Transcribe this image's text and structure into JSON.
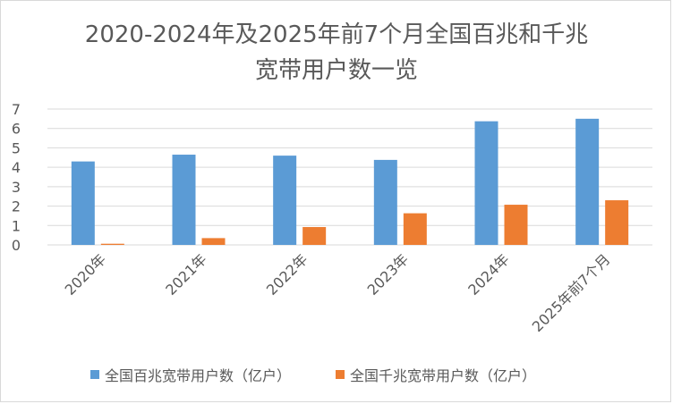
{
  "title": {
    "line1": "2020-2024年及2025年前7个月全国百兆和千兆",
    "line2": "宽带用户数一览"
  },
  "colors": {
    "series1": "#5b9bd5",
    "series2": "#ed7d31",
    "gridline": "#d9d9d9",
    "text": "#595959"
  },
  "chart_data": {
    "type": "bar",
    "title": "2020-2024年及2025年前7个月全国百兆和千兆宽带用户数一览",
    "categories": [
      "2020年",
      "2021年",
      "2022年",
      "2023年",
      "2024年",
      "2025年前7个月"
    ],
    "series": [
      {
        "name": "全国百兆宽带用户数（亿户）",
        "values": [
          4.3,
          4.65,
          4.6,
          4.38,
          6.37,
          6.5
        ]
      },
      {
        "name": "全国千兆宽带用户数（亿户）",
        "values": [
          0.06,
          0.35,
          0.92,
          1.63,
          2.07,
          2.3
        ]
      }
    ],
    "ylim": [
      0,
      7
    ],
    "yticks": [
      0,
      1,
      2,
      3,
      4,
      5,
      6,
      7
    ],
    "grid": true,
    "legend_position": "bottom"
  }
}
